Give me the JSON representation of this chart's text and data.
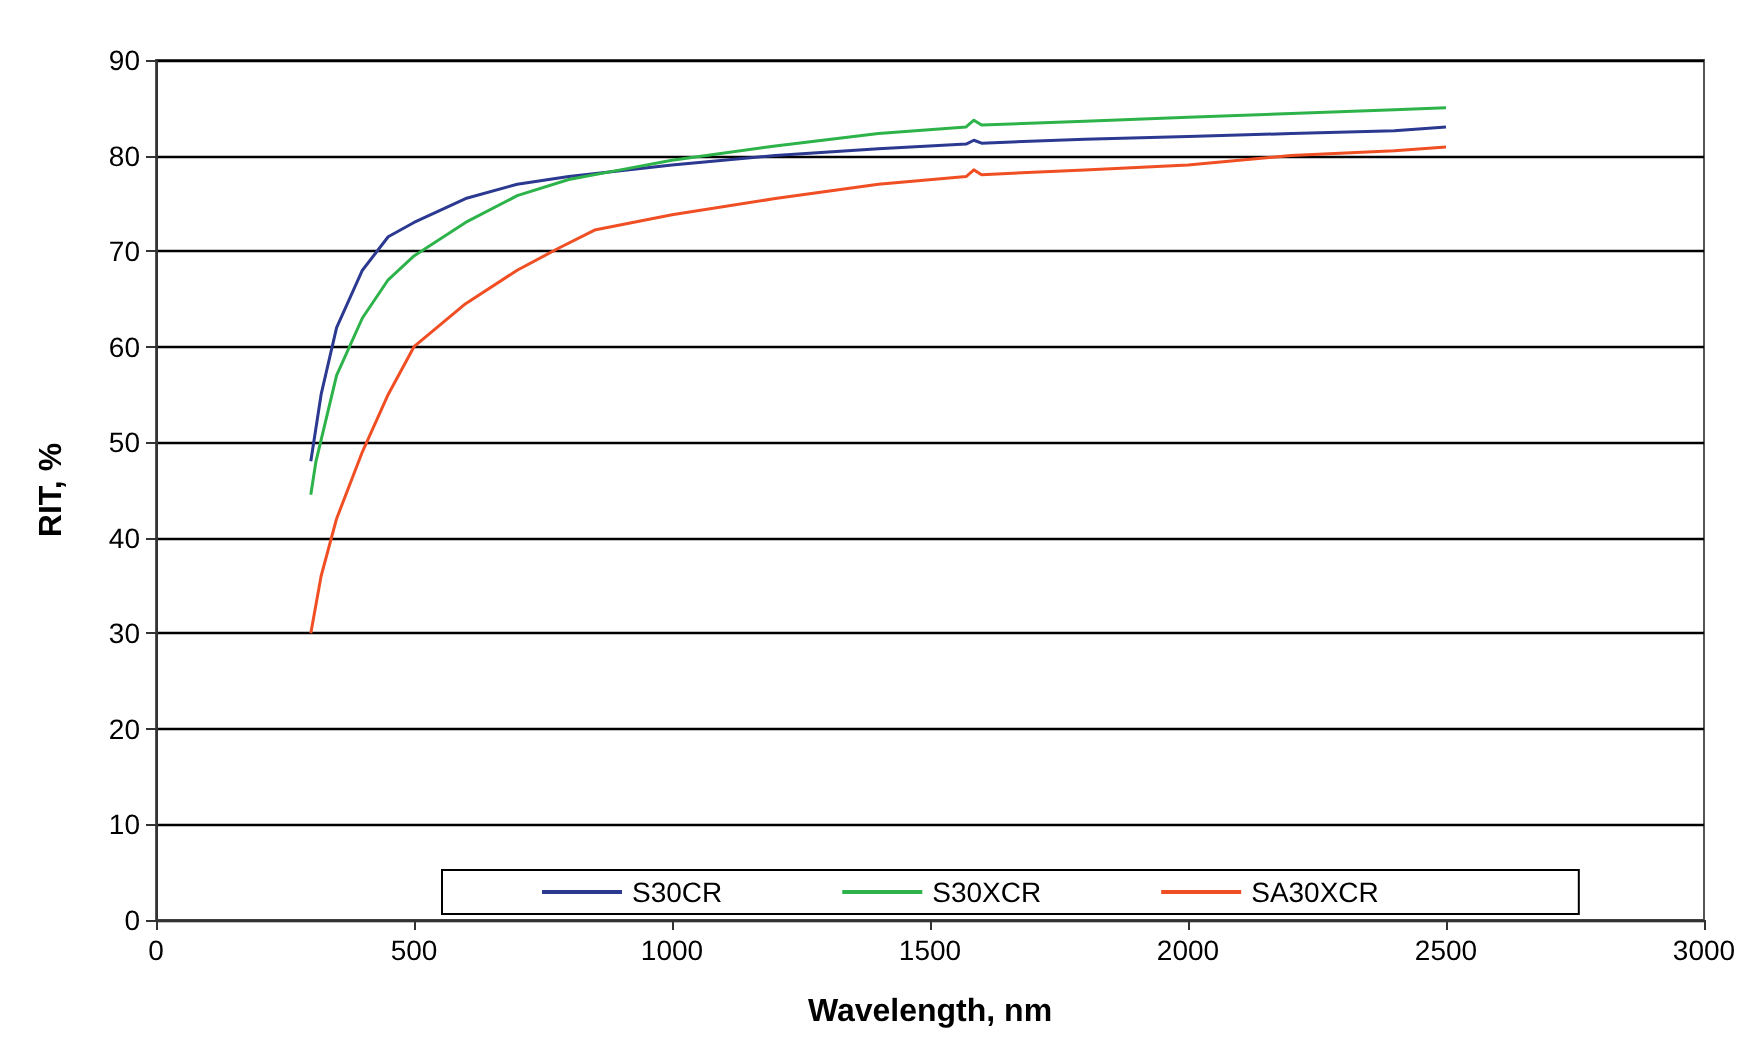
{
  "chart_data": {
    "type": "line",
    "xlabel": "Wavelength, nm",
    "ylabel": "RIT, %",
    "xlim": [
      0,
      3000
    ],
    "xticks": [
      0,
      500,
      1000,
      1500,
      2000,
      2500,
      3000
    ],
    "ylim": [
      0,
      90
    ],
    "yticks": [
      0,
      10,
      20,
      30,
      40,
      50,
      60,
      70,
      80,
      90
    ],
    "grid": "y",
    "legend": "bottom",
    "marker": "none",
    "line_style": "solid",
    "series": [
      {
        "name": "S30CR",
        "color": "#2b3990",
        "x": [
          300,
          320,
          350,
          400,
          450,
          500,
          600,
          700,
          800,
          1000,
          1200,
          1400,
          1570,
          1585,
          1600,
          1800,
          2000,
          2200,
          2400,
          2500
        ],
        "values": [
          48,
          55,
          62,
          68,
          71.5,
          73,
          75.5,
          77,
          77.8,
          79,
          80,
          80.7,
          81.2,
          81.6,
          81.3,
          81.7,
          82,
          82.3,
          82.6,
          83
        ]
      },
      {
        "name": "S30XCR",
        "color": "#2db34a",
        "x": [
          300,
          310,
          350,
          400,
          450,
          500,
          600,
          700,
          800,
          900,
          1000,
          1200,
          1400,
          1570,
          1585,
          1600,
          1800,
          2000,
          2200,
          2400,
          2500
        ],
        "values": [
          44.5,
          48,
          57,
          63,
          67,
          69.5,
          73,
          75.8,
          77.5,
          78.5,
          79.5,
          81,
          82.3,
          83,
          83.7,
          83.2,
          83.6,
          84,
          84.4,
          84.8,
          85
        ]
      },
      {
        "name": "SA30XCR",
        "color": "#f04e23",
        "x": [
          300,
          320,
          350,
          400,
          450,
          500,
          600,
          700,
          780,
          850,
          1000,
          1200,
          1400,
          1570,
          1585,
          1600,
          1800,
          2000,
          2200,
          2400,
          2500
        ],
        "values": [
          30,
          36,
          42,
          49,
          55,
          60,
          64.5,
          68,
          70.3,
          72.2,
          73.8,
          75.5,
          77,
          77.8,
          78.5,
          78,
          78.5,
          79,
          80,
          80.5,
          80.9
        ]
      }
    ]
  }
}
